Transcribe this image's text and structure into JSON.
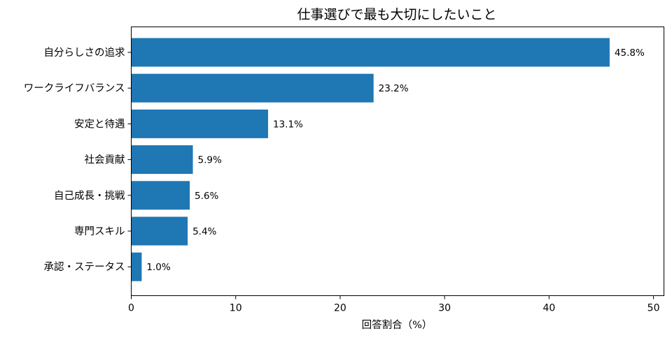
{
  "chart_data": {
    "type": "bar",
    "orientation": "horizontal",
    "title": "仕事選びで最も大切にしたいこと",
    "xlabel": "回答割合（%）",
    "ylabel": "",
    "categories": [
      "自分らしさの追求",
      "ワークライフバランス",
      "安定と待遇",
      "社会貢献",
      "自己成長・挑戦",
      "専門スキル",
      "承認・ステータス"
    ],
    "values": [
      45.8,
      23.2,
      13.1,
      5.9,
      5.6,
      5.4,
      1.0
    ],
    "data_labels": [
      "45.8%",
      "23.2%",
      "13.1%",
      "5.9%",
      "5.6%",
      "5.4%",
      "1.0%"
    ],
    "xlim": [
      0,
      51
    ],
    "xticks": [
      0,
      10,
      20,
      30,
      40,
      50
    ],
    "bar_color": "#1f77b4",
    "grid": false,
    "legend": "none"
  }
}
